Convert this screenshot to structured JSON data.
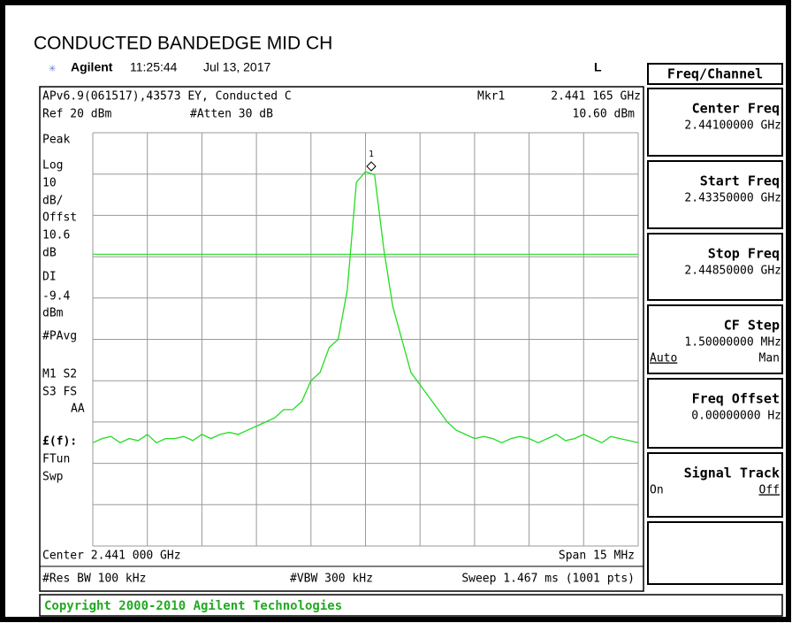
{
  "header": {
    "title": "CONDUCTED BANDEDGE MID CH",
    "brand": "Agilent",
    "time": "11:25:44",
    "date": "Jul 13, 2017",
    "indicator": "L"
  },
  "screen": {
    "info_line": "APv6.9(061517),43573 EY, Conducted C",
    "marker_label": "Mkr1",
    "marker_freq": "2.441 165 GHz",
    "ref_level": "Ref 20 dBm",
    "atten": "#Atten 30 dB",
    "marker_level": "10.60 dBm",
    "marker_number": "1",
    "side_labels": [
      "Peak",
      "Log",
      "10",
      "dB/",
      "Offst",
      "10.6",
      "dB",
      "DI",
      "-9.4",
      "dBm",
      "#PAvg",
      "M1  S2",
      "S3  FS",
      "AA",
      "£(f):",
      "FTun",
      "Swp"
    ],
    "center": "Center 2.441 000 GHz",
    "span": "Span 15 MHz",
    "rbw": "#Res BW 100 kHz",
    "vbw": "#VBW 300 kHz",
    "sweep": "Sweep 1.467 ms (1001 pts)"
  },
  "chart_data": {
    "type": "line",
    "color": "#22dd22",
    "grid": true,
    "xlim": [
      2.4335,
      2.4485
    ],
    "ylim": [
      -80,
      20
    ],
    "xticks": [
      2.4335,
      2.435,
      2.4365,
      2.438,
      2.4395,
      2.441,
      2.4425,
      2.444,
      2.4455,
      2.447,
      2.4485
    ],
    "yticks": [
      20,
      10,
      0,
      -10,
      -20,
      -30,
      -40,
      -50,
      -60,
      -70,
      -80
    ],
    "display_line": -9.4,
    "x": [
      2.4335,
      2.43375,
      2.434,
      2.43425,
      2.4345,
      2.43475,
      2.435,
      2.43525,
      2.4355,
      2.43575,
      2.436,
      2.43625,
      2.4365,
      2.43675,
      2.437,
      2.43725,
      2.4375,
      2.43775,
      2.438,
      2.43825,
      2.4385,
      2.43875,
      2.439,
      2.43925,
      2.4395,
      2.43975,
      2.44,
      2.44025,
      2.4405,
      2.44075,
      2.441,
      2.44125,
      2.4415,
      2.44175,
      2.442,
      2.44225,
      2.4425,
      2.44275,
      2.443,
      2.44325,
      2.4435,
      2.44375,
      2.444,
      2.44425,
      2.4445,
      2.44475,
      2.445,
      2.44525,
      2.4455,
      2.44575,
      2.446,
      2.44625,
      2.4465,
      2.44675,
      2.447,
      2.44725,
      2.4475,
      2.44775,
      2.448,
      2.44825,
      2.4485
    ],
    "values": [
      -55,
      -54,
      -53.5,
      -55,
      -54,
      -54.5,
      -53,
      -55,
      -54,
      -54,
      -53.5,
      -54.5,
      -53,
      -54,
      -53,
      -52.5,
      -53,
      -52,
      -51,
      -50,
      -49,
      -47,
      -47,
      -45,
      -40,
      -38,
      -32,
      -30,
      -18,
      8,
      10.6,
      9.8,
      -8,
      -22,
      -30,
      -38,
      -41,
      -44,
      -47,
      -50,
      -52,
      -53,
      -54,
      -53.5,
      -54,
      -55,
      -54,
      -53.5,
      -54,
      -55,
      -54,
      -53,
      -54.5,
      -54,
      -53,
      -54,
      -55,
      -53.5,
      -54,
      -54.5,
      -55
    ]
  },
  "softkeys": {
    "menu": "Freq/Channel",
    "keys": [
      {
        "label": "Center Freq",
        "value": "2.44100000 GHz"
      },
      {
        "label": "Start Freq",
        "value": "2.43350000 GHz"
      },
      {
        "label": "Stop Freq",
        "value": "2.44850000 GHz"
      },
      {
        "label": "CF Step",
        "value": "1.50000000 MHz",
        "left": "Auto",
        "right": "Man"
      },
      {
        "label": "Freq Offset",
        "value": "0.00000000  Hz"
      },
      {
        "label": "Signal Track",
        "left": "On",
        "right": "Off"
      }
    ]
  },
  "footer": "Copyright 2000-2010 Agilent Technologies"
}
